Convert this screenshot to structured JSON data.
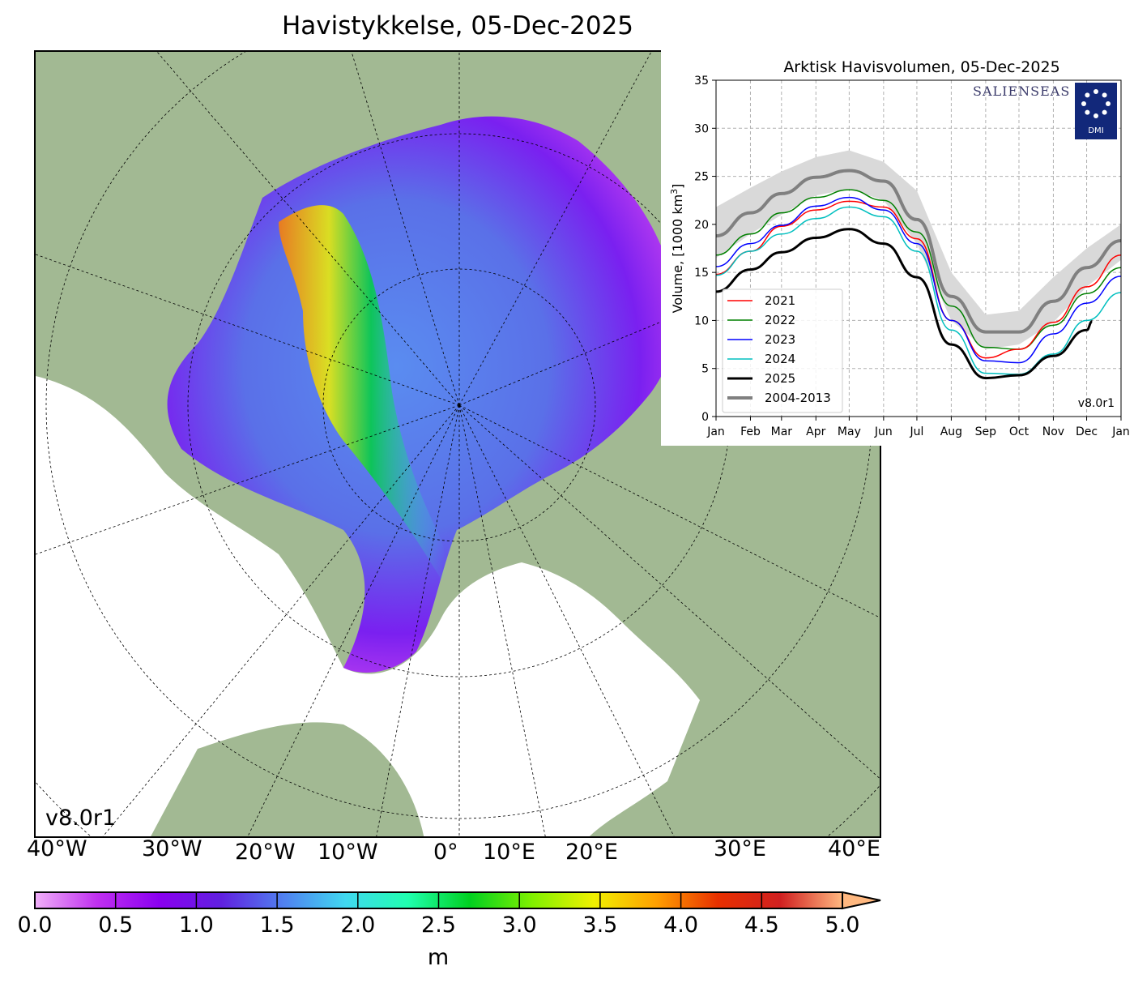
{
  "title": "Havistykkelse, 05-Dec-2025",
  "map": {
    "version": "v8.0r1",
    "longitude_labels": [
      "40°W",
      "30°W",
      "20°W",
      "10°W",
      "0°",
      "10°E",
      "20°E",
      "30°E",
      "40°E"
    ],
    "colors": {
      "land": "#a2b993",
      "ocean": "#ffffff",
      "coast": "#000000",
      "rivers": "#8fb3e0"
    }
  },
  "colorbar": {
    "ticks": [
      "0.0",
      "0.5",
      "1.0",
      "1.5",
      "2.0",
      "2.5",
      "3.0",
      "3.5",
      "4.0",
      "4.5",
      "5.0"
    ],
    "unit": "m",
    "range": [
      0,
      5
    ],
    "extend": "max",
    "colors": [
      "#f0b0f8",
      "#c030f0",
      "#8a00f0",
      "#6020e0",
      "#5080f0",
      "#40d8f0",
      "#20ffb0",
      "#00d020",
      "#80f000",
      "#f0f000",
      "#ffa000",
      "#e83000",
      "#d02020",
      "#ffb880"
    ]
  },
  "chart_data": {
    "type": "line",
    "title": "Arktisk Havisvolumen, 05-Dec-2025",
    "ylabel": "Volume, [1000 km³]",
    "ylabel_main": "Volume, [1000 km",
    "ylabel_sup": "3",
    "ylabel_end": "]",
    "ylim": [
      0,
      35
    ],
    "yticks": [
      "0",
      "5",
      "10",
      "15",
      "20",
      "25",
      "30",
      "35"
    ],
    "xticks": [
      "Jan",
      "Feb",
      "Mar",
      "Apr",
      "May",
      "Jun",
      "Jul",
      "Aug",
      "Sep",
      "Oct",
      "Nov",
      "Dec",
      "Jan"
    ],
    "x_day": [
      0,
      31,
      59,
      90,
      120,
      151,
      181,
      212,
      243,
      273,
      304,
      334,
      365
    ],
    "grid": true,
    "legend_placement": "lower-left",
    "logos": [
      "SALIENSEAS",
      "DMI"
    ],
    "version": "v8.0r1",
    "series": [
      {
        "name": "2021",
        "color": "#ff0000",
        "width": 1.5,
        "values": [
          14.8,
          17.2,
          19.8,
          21.5,
          22.4,
          21.8,
          18.5,
          10.0,
          6.1,
          7.0,
          9.8,
          13.5,
          16.8
        ]
      },
      {
        "name": "2022",
        "color": "#008000",
        "width": 1.5,
        "values": [
          16.8,
          19.0,
          21.2,
          22.8,
          23.6,
          22.5,
          19.2,
          11.5,
          7.2,
          7.0,
          9.5,
          12.8,
          15.5
        ]
      },
      {
        "name": "2023",
        "color": "#0000ff",
        "width": 1.5,
        "values": [
          15.6,
          18.0,
          19.9,
          21.9,
          22.8,
          21.5,
          18.0,
          10.0,
          5.8,
          5.6,
          8.6,
          11.8,
          14.6
        ]
      },
      {
        "name": "2024",
        "color": "#00bfbf",
        "width": 1.5,
        "values": [
          14.7,
          17.2,
          19.0,
          20.6,
          21.8,
          20.8,
          17.2,
          9.0,
          4.5,
          4.4,
          6.5,
          10.0,
          12.9
        ]
      },
      {
        "name": "2025",
        "color": "#000000",
        "width": 3,
        "values": [
          13.0,
          15.3,
          17.1,
          18.6,
          19.5,
          18.0,
          14.5,
          7.5,
          4.0,
          4.3,
          6.3,
          9.0,
          null
        ],
        "last": {
          "day": 339,
          "value": 9.9
        }
      },
      {
        "name": "2004-2013",
        "color": "#808080",
        "width": 4,
        "values": [
          18.8,
          21.2,
          23.2,
          24.9,
          25.6,
          24.5,
          20.5,
          12.5,
          8.8,
          8.8,
          12.0,
          15.5,
          18.3
        ],
        "band_upper": [
          21.8,
          23.8,
          25.5,
          27.0,
          27.7,
          26.5,
          23.5,
          15.0,
          10.6,
          11.0,
          14.5,
          17.5,
          20.0
        ],
        "band_lower": [
          16.5,
          19.0,
          21.0,
          23.0,
          23.7,
          22.5,
          18.0,
          10.0,
          7.0,
          7.5,
          9.8,
          13.5,
          16.3
        ],
        "band_color": "#d9d9d9"
      }
    ]
  }
}
